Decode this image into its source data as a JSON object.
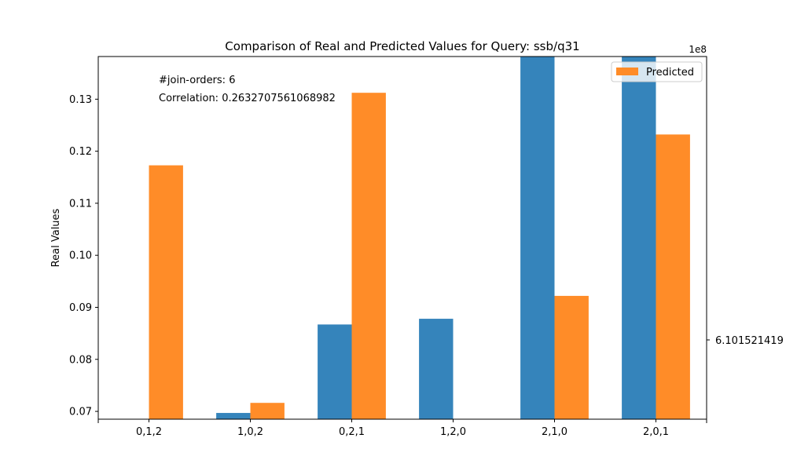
{
  "chart_data": {
    "type": "bar",
    "title": "Comparison of Real and Predicted Values for Query: ssb/q31",
    "xlabel": "",
    "ylabel": "Real Values",
    "categories": [
      "0,1,2",
      "1,0,2",
      "0,2,1",
      "1,2,0",
      "2,1,0",
      "2,0,1"
    ],
    "ylim": [
      0.0685,
      0.1382
    ],
    "yticks": [
      "0.07",
      "0.08",
      "0.09",
      "0.10",
      "0.11",
      "0.12",
      "0.13"
    ],
    "y2_offset_label": "1e8",
    "y2_tick_label": "6.101521419",
    "grid": false,
    "legend_position": "upper right",
    "series": [
      {
        "axis": "left",
        "color": "#3584bb",
        "values": [
          null,
          0.0697,
          0.0867,
          0.0878,
          0.1382,
          0.1382
        ]
      },
      {
        "name": "Predicted",
        "axis": "right",
        "color": "#ff8c28",
        "relative_height": [
          0.7,
          0.045,
          0.9,
          0.0,
          0.34,
          0.785
        ]
      }
    ],
    "annotations": [
      "#join-orders: 6",
      "Correlation: 0.2632707561068982"
    ]
  }
}
